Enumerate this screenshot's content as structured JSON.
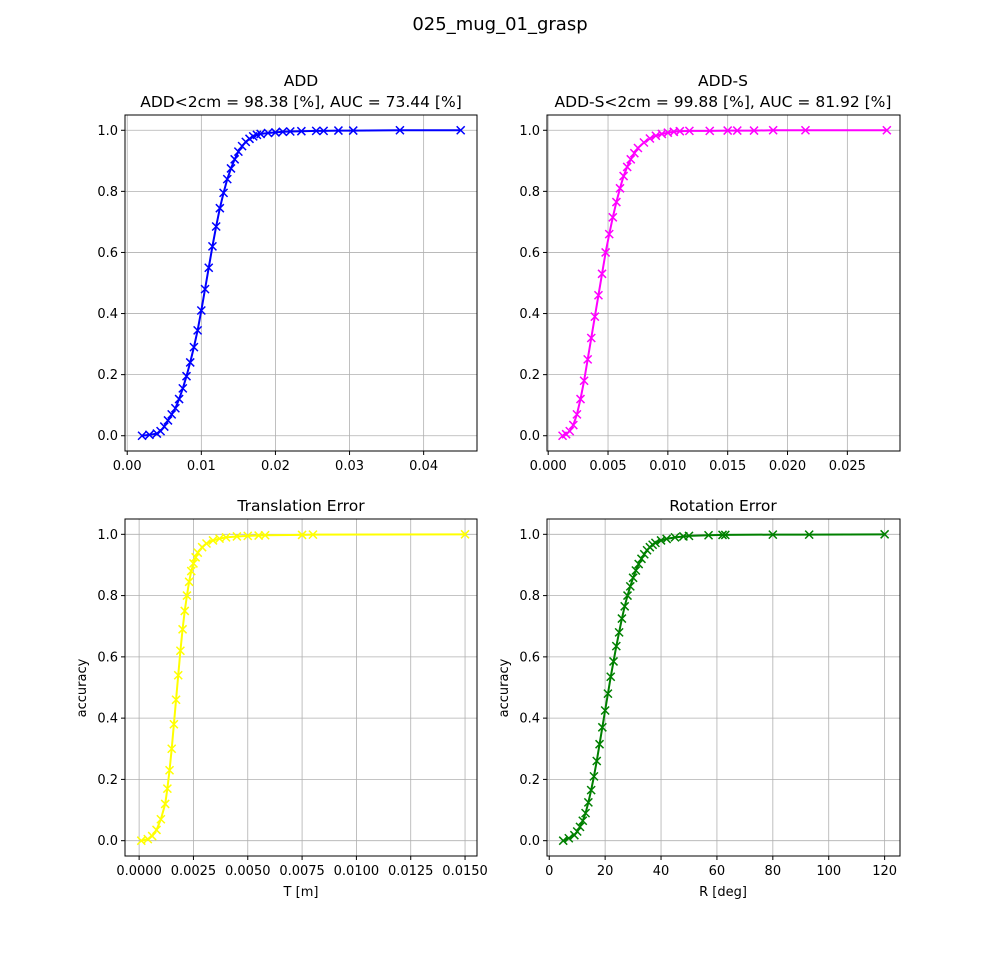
{
  "figure_title": "025_mug_01_grasp",
  "chart_data": [
    {
      "type": "line",
      "title": "ADD",
      "subtitle": "ADD<2cm = 98.38 [%], AUC = 73.44 [%]",
      "xlabel": "",
      "ylabel": "",
      "xlim": [
        -0.0003,
        0.0472
      ],
      "ylim": [
        -0.05,
        1.05
      ],
      "xticks": [
        0.0,
        0.01,
        0.02,
        0.03,
        0.04
      ],
      "xtick_labels": [
        "0.00",
        "0.01",
        "0.02",
        "0.03",
        "0.04"
      ],
      "yticks": [
        0.0,
        0.2,
        0.4,
        0.6,
        0.8,
        1.0
      ],
      "ytick_labels": [
        "0.0",
        "0.2",
        "0.4",
        "0.6",
        "0.8",
        "1.0"
      ],
      "grid": true,
      "marker": "x",
      "color": "#0000ff",
      "series": [
        {
          "x": [
            0.002,
            0.003,
            0.004,
            0.0045,
            0.005,
            0.0055,
            0.006,
            0.0065,
            0.007,
            0.0075,
            0.008,
            0.0085,
            0.009,
            0.0095,
            0.01,
            0.0105,
            0.011,
            0.0115,
            0.012,
            0.0125,
            0.013,
            0.0135,
            0.014,
            0.0145,
            0.015,
            0.0155,
            0.016,
            0.0165,
            0.017,
            0.0175,
            0.018,
            0.019,
            0.02,
            0.021,
            0.022,
            0.0235,
            0.0255,
            0.0265,
            0.0285,
            0.0305,
            0.0368,
            0.045
          ],
          "y": [
            0.0,
            0.003,
            0.007,
            0.015,
            0.03,
            0.05,
            0.07,
            0.09,
            0.12,
            0.155,
            0.195,
            0.24,
            0.29,
            0.345,
            0.41,
            0.48,
            0.55,
            0.62,
            0.685,
            0.745,
            0.795,
            0.84,
            0.875,
            0.905,
            0.93,
            0.948,
            0.962,
            0.972,
            0.98,
            0.985,
            0.988,
            0.991,
            0.993,
            0.995,
            0.996,
            0.997,
            0.998,
            0.998,
            0.999,
            0.999,
            1.0,
            1.0
          ]
        }
      ]
    },
    {
      "type": "line",
      "title": "ADD-S",
      "subtitle": "ADD-S<2cm = 99.88 [%], AUC = 81.92 [%]",
      "xlabel": "",
      "ylabel": "",
      "xlim": [
        -0.0001,
        0.0294
      ],
      "ylim": [
        -0.05,
        1.05
      ],
      "xticks": [
        0.0,
        0.005,
        0.01,
        0.015,
        0.02,
        0.025
      ],
      "xtick_labels": [
        "0.000",
        "0.005",
        "0.010",
        "0.015",
        "0.020",
        "0.025"
      ],
      "yticks": [
        0.0,
        0.2,
        0.4,
        0.6,
        0.8,
        1.0
      ],
      "ytick_labels": [
        "0.0",
        "0.2",
        "0.4",
        "0.6",
        "0.8",
        "1.0"
      ],
      "grid": true,
      "marker": "x",
      "color": "#ff00ff",
      "series": [
        {
          "x": [
            0.0012,
            0.0015,
            0.0018,
            0.0021,
            0.0024,
            0.0027,
            0.003,
            0.0033,
            0.0036,
            0.0039,
            0.0042,
            0.0045,
            0.0048,
            0.0051,
            0.0054,
            0.0057,
            0.006,
            0.0063,
            0.0066,
            0.0069,
            0.0072,
            0.0075,
            0.008,
            0.0085,
            0.009,
            0.0095,
            0.01,
            0.0105,
            0.011,
            0.0118,
            0.0135,
            0.015,
            0.0158,
            0.0172,
            0.0188,
            0.0215,
            0.0283
          ],
          "y": [
            0.0,
            0.005,
            0.015,
            0.035,
            0.07,
            0.12,
            0.18,
            0.25,
            0.32,
            0.39,
            0.46,
            0.53,
            0.6,
            0.66,
            0.715,
            0.765,
            0.81,
            0.85,
            0.88,
            0.905,
            0.925,
            0.942,
            0.96,
            0.973,
            0.982,
            0.988,
            0.992,
            0.995,
            0.997,
            0.998,
            0.998,
            0.999,
            0.999,
            0.999,
            1.0,
            1.0,
            1.0
          ]
        }
      ]
    },
    {
      "type": "line",
      "title": "Translation Error",
      "subtitle": "",
      "xlabel": "T [m]",
      "ylabel": "accuracy",
      "xlim": [
        -0.00065,
        0.01555
      ],
      "ylim": [
        -0.05,
        1.05
      ],
      "xticks": [
        0.0,
        0.0025,
        0.005,
        0.0075,
        0.01,
        0.0125,
        0.015
      ],
      "xtick_labels": [
        "0.0000",
        "0.0025",
        "0.0050",
        "0.0075",
        "0.0100",
        "0.0125",
        "0.0150"
      ],
      "yticks": [
        0.0,
        0.2,
        0.4,
        0.6,
        0.8,
        1.0
      ],
      "ytick_labels": [
        "0.0",
        "0.2",
        "0.4",
        "0.6",
        "0.8",
        "1.0"
      ],
      "grid": true,
      "marker": "x",
      "color": "#ffff00",
      "series": [
        {
          "x": [
            0.0001,
            0.0004,
            0.0006,
            0.0008,
            0.001,
            0.0012,
            0.0013,
            0.0014,
            0.0015,
            0.0016,
            0.0017,
            0.0018,
            0.0019,
            0.002,
            0.0021,
            0.0022,
            0.0023,
            0.0024,
            0.0025,
            0.0026,
            0.0027,
            0.0029,
            0.0031,
            0.0034,
            0.0037,
            0.004,
            0.0045,
            0.005,
            0.0055,
            0.0058,
            0.0075,
            0.008,
            0.015
          ],
          "y": [
            0.0,
            0.005,
            0.015,
            0.035,
            0.07,
            0.12,
            0.17,
            0.23,
            0.3,
            0.38,
            0.46,
            0.54,
            0.62,
            0.69,
            0.75,
            0.8,
            0.845,
            0.88,
            0.905,
            0.925,
            0.94,
            0.958,
            0.97,
            0.98,
            0.986,
            0.99,
            0.993,
            0.995,
            0.996,
            0.997,
            0.998,
            0.999,
            1.0
          ]
        }
      ]
    },
    {
      "type": "line",
      "title": "Rotation Error",
      "subtitle": "",
      "xlabel": "R [deg]",
      "ylabel": "accuracy",
      "xlim": [
        -0.8,
        125.5
      ],
      "ylim": [
        -0.05,
        1.05
      ],
      "xticks": [
        0,
        20,
        40,
        60,
        80,
        100,
        120
      ],
      "xtick_labels": [
        "0",
        "20",
        "40",
        "60",
        "80",
        "100",
        "120"
      ],
      "yticks": [
        0.0,
        0.2,
        0.4,
        0.6,
        0.8,
        1.0
      ],
      "ytick_labels": [
        "0.0",
        "0.2",
        "0.4",
        "0.6",
        "0.8",
        "1.0"
      ],
      "grid": true,
      "marker": "x",
      "color": "#008000",
      "series": [
        {
          "x": [
            5,
            7,
            9,
            10,
            11,
            12,
            13,
            14,
            15,
            16,
            17,
            18,
            19,
            20,
            21,
            22,
            23,
            24,
            25,
            26,
            27,
            28,
            29,
            30,
            31,
            32,
            33,
            34,
            35,
            36,
            37,
            38,
            40,
            42,
            45,
            48,
            50,
            57,
            62,
            63,
            80,
            93,
            120
          ],
          "y": [
            0.0,
            0.008,
            0.018,
            0.03,
            0.045,
            0.065,
            0.09,
            0.125,
            0.165,
            0.21,
            0.26,
            0.315,
            0.37,
            0.425,
            0.48,
            0.535,
            0.585,
            0.635,
            0.68,
            0.725,
            0.765,
            0.8,
            0.83,
            0.858,
            0.882,
            0.903,
            0.92,
            0.935,
            0.948,
            0.958,
            0.966,
            0.972,
            0.98,
            0.985,
            0.99,
            0.993,
            0.995,
            0.997,
            0.998,
            0.998,
            0.999,
            0.999,
            1.0
          ]
        }
      ]
    }
  ]
}
